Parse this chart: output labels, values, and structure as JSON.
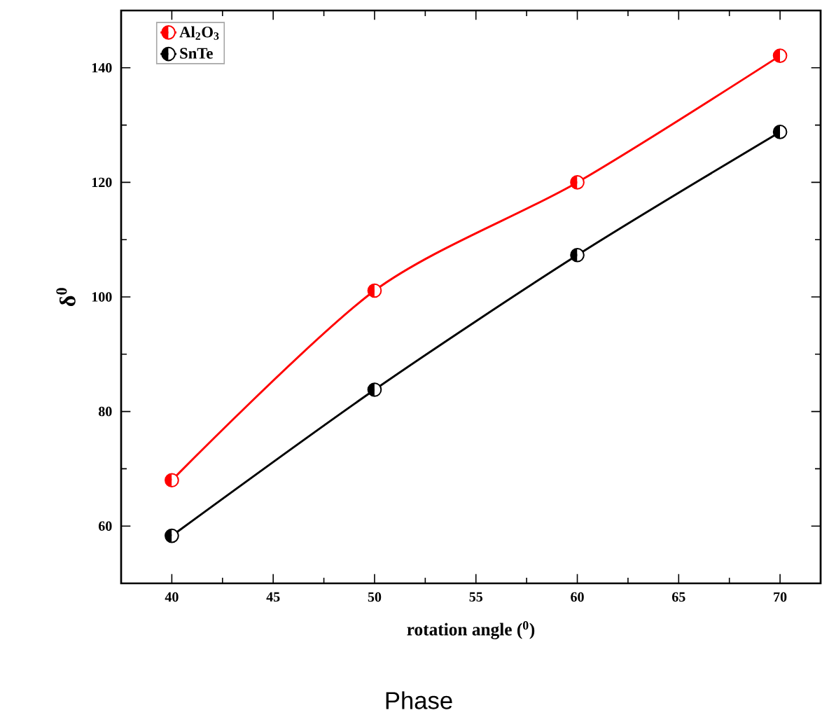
{
  "chart_data": {
    "type": "line",
    "xlabel": "rotation angle ($^{0}$)",
    "ylabel": "δ$^{0}$",
    "annotations": [
      "Phase"
    ],
    "x": [
      40,
      50,
      60,
      70
    ],
    "series": [
      {
        "name": "Al$_{2}$O$_{3}$",
        "color": "#ff0000",
        "values": [
          68.0,
          101.1,
          120.0,
          142.1
        ]
      },
      {
        "name": "SnTe",
        "color": "#000000",
        "values": [
          58.3,
          83.8,
          107.3,
          128.8
        ]
      }
    ],
    "xlim": [
      37.5,
      72
    ],
    "ylim": [
      50,
      150
    ],
    "xticks": [
      40,
      45,
      50,
      55,
      60,
      65,
      70
    ],
    "yticks": [
      60,
      80,
      100,
      120,
      140
    ],
    "grid": false,
    "legend": "top left",
    "marker": "circle"
  }
}
